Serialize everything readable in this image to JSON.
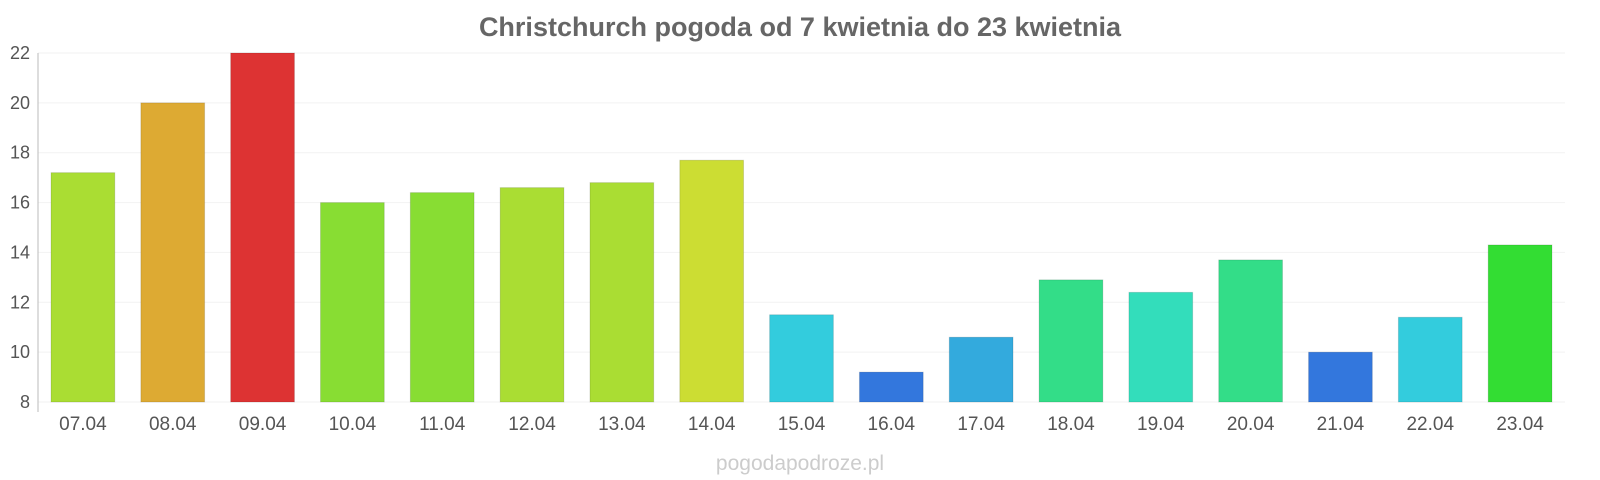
{
  "chart_data": {
    "type": "bar",
    "title": "Christchurch pogoda od 7 kwietnia do 23 kwietnia",
    "xlabel": "",
    "ylabel": "",
    "ylim": [
      8,
      22
    ],
    "yticks": [
      8,
      10,
      12,
      14,
      16,
      18,
      20,
      22
    ],
    "grid": true,
    "categories": [
      "07.04",
      "08.04",
      "09.04",
      "10.04",
      "11.04",
      "12.04",
      "13.04",
      "14.04",
      "15.04",
      "16.04",
      "17.04",
      "18.04",
      "19.04",
      "20.04",
      "21.04",
      "22.04",
      "23.04"
    ],
    "values": [
      17.2,
      20.0,
      22.0,
      16.0,
      16.4,
      16.6,
      16.8,
      17.7,
      11.5,
      9.2,
      10.6,
      12.9,
      12.4,
      13.7,
      10.0,
      11.4,
      14.3
    ],
    "colors": [
      "#aadd33",
      "#ddaa33",
      "#dd3333",
      "#88dd33",
      "#88dd33",
      "#aadd33",
      "#aadd33",
      "#ccdd33",
      "#33ccdd",
      "#3377dd",
      "#33aadd",
      "#33dd88",
      "#33ddbb",
      "#33dd88",
      "#3377dd",
      "#33ccdd",
      "#33dd33"
    ]
  },
  "watermark": "pogodapodroze.pl"
}
